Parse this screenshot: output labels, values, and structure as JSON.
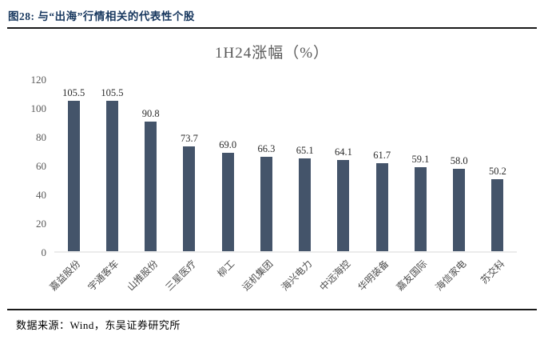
{
  "header": {
    "caption": "图28:  与“出海”行情相关的代表性个股"
  },
  "chart_data": {
    "type": "bar",
    "title": "1H24涨幅（%）",
    "categories": [
      "嘉益股份",
      "宇通客车",
      "山推股份",
      "三星医疗",
      "柳工",
      "运机集团",
      "海兴电力",
      "中远海控",
      "华明装备",
      "嘉友国际",
      "海信家电",
      "苏交科"
    ],
    "values": [
      105.5,
      105.5,
      90.8,
      73.7,
      69.0,
      66.3,
      65.1,
      64.1,
      61.7,
      59.1,
      58.0,
      50.2
    ],
    "value_labels": [
      "105.5",
      "105.5",
      "90.8",
      "73.7",
      "69.0",
      "66.3",
      "65.1",
      "64.1",
      "61.7",
      "59.1",
      "58.0",
      "50.2"
    ],
    "ylim": [
      0,
      120
    ],
    "yticks": [
      "120",
      "100",
      "80",
      "60",
      "40",
      "20",
      "0"
    ],
    "grid": false,
    "legend_position": "none",
    "bar_color": "#44546A",
    "xlabel": "",
    "ylabel": ""
  },
  "footer": {
    "source": "数据来源：Wind，东吴证券研究所"
  }
}
